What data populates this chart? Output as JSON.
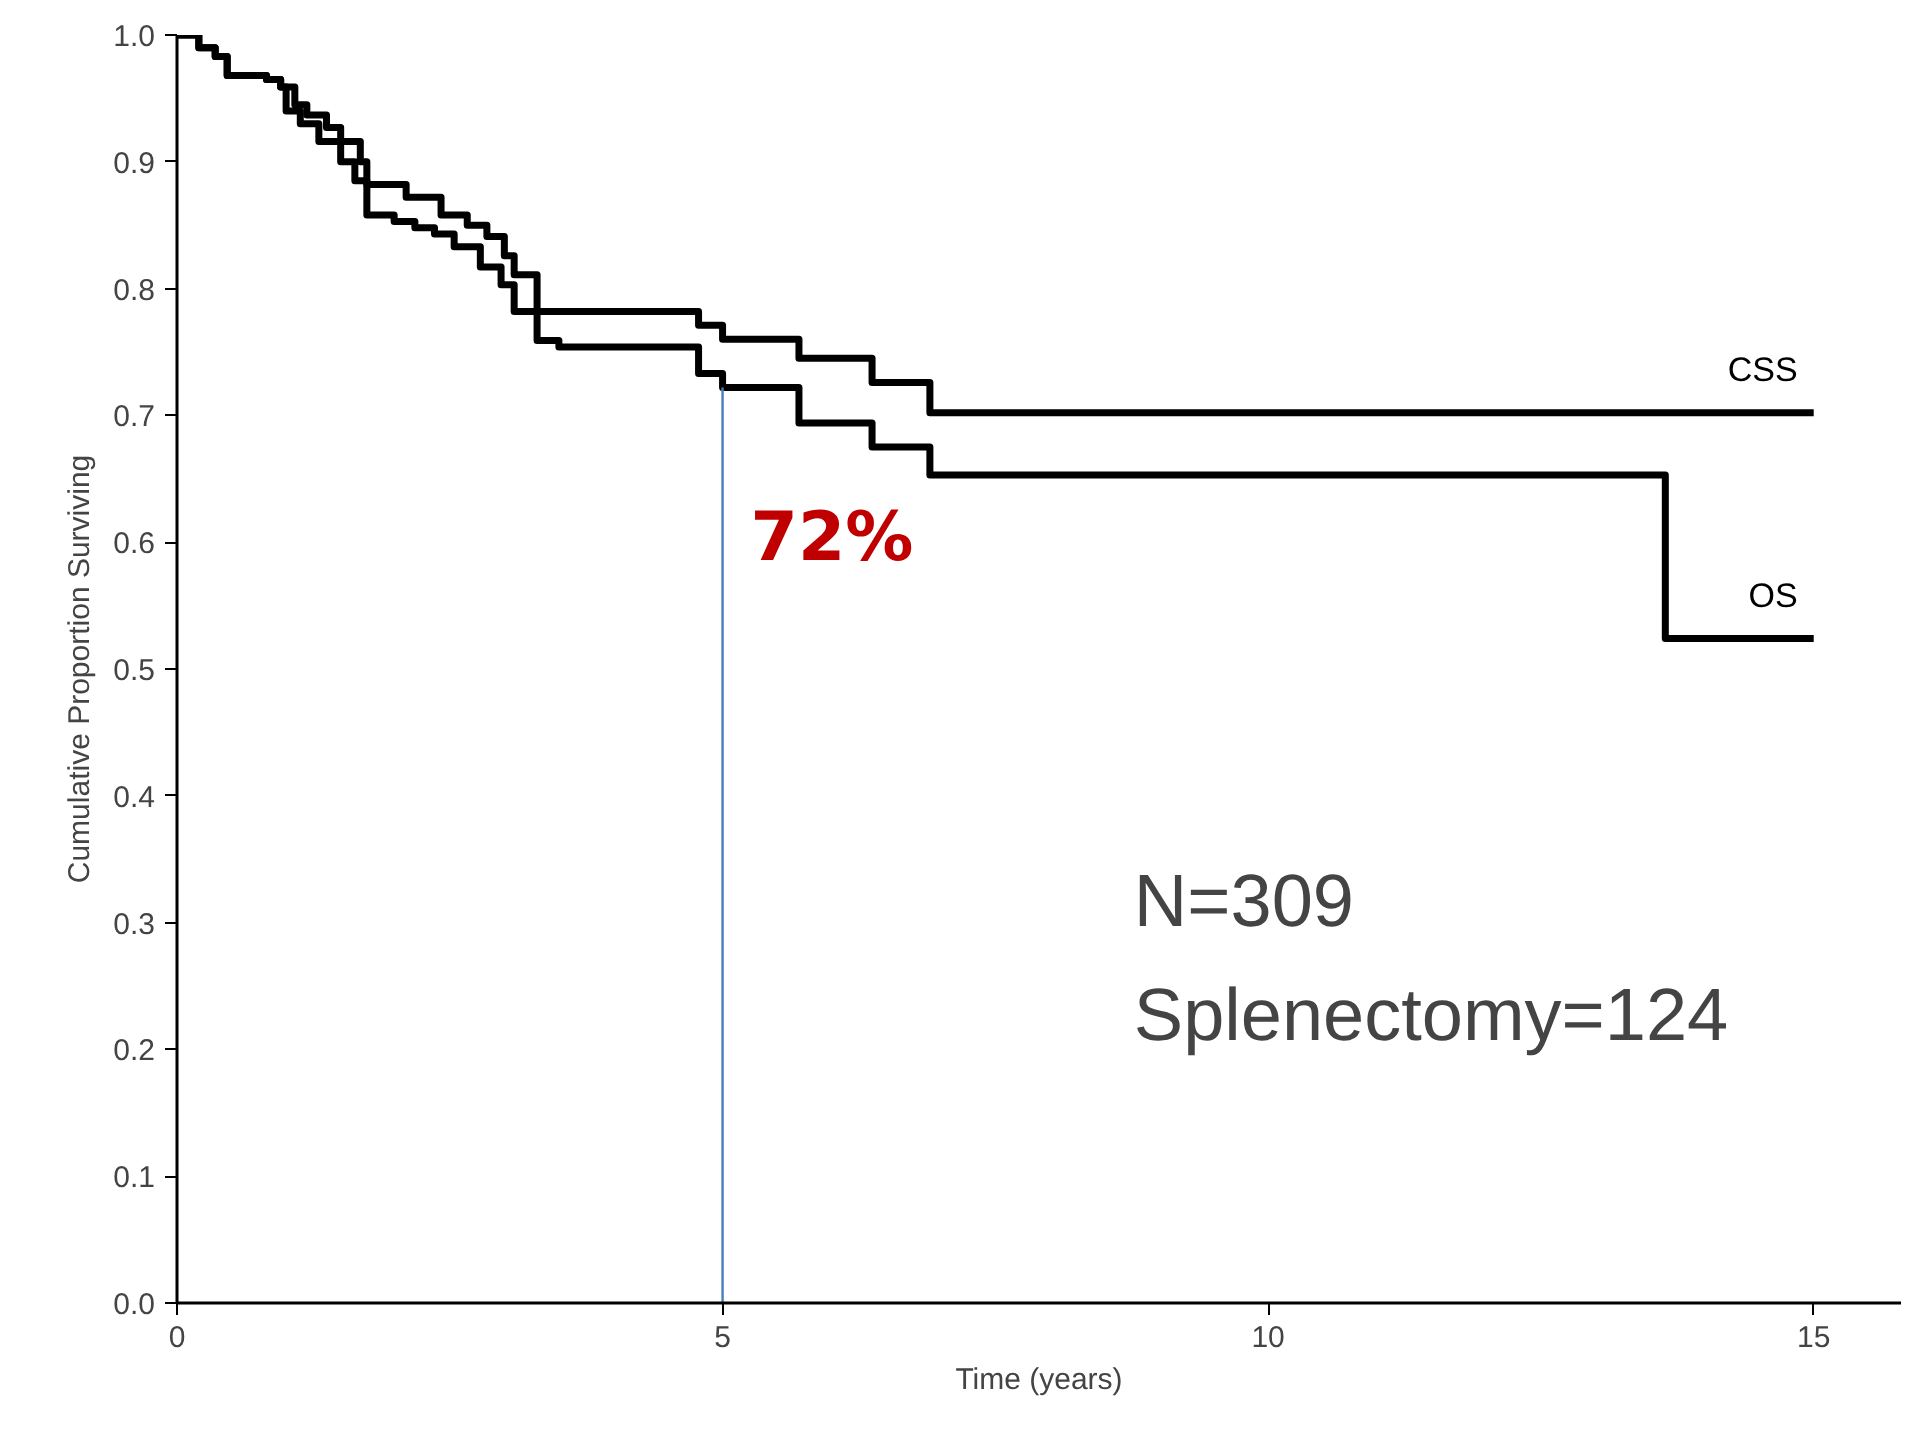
{
  "chart_data": {
    "type": "step",
    "xlabel": "Time (years)",
    "ylabel": "Cumulative Proportion Surviving",
    "xlim": [
      0,
      15.8
    ],
    "ylim": [
      0,
      1.0
    ],
    "xticks": [
      0,
      5,
      10,
      15
    ],
    "yticks": [
      {
        "value": 0,
        "label": "0.0"
      },
      0.1,
      0.2,
      0.3,
      0.4,
      0.5,
      0.6,
      0.7,
      0.8,
      0.9,
      {
        "value": 1,
        "label": "1.0"
      }
    ],
    "grid": false,
    "marker": "none",
    "line_style": "solid",
    "series": [
      {
        "name": "CSS",
        "color": "#000000",
        "x": [
          0,
          0.2,
          0.35,
          0.46,
          0.82,
          0.95,
          1.08,
          1.19,
          1.37,
          1.5,
          1.68,
          1.74,
          2.1,
          2.42,
          2.66,
          2.84,
          3.0,
          3.09,
          3.3,
          4.78,
          5.0,
          5.7,
          6.37,
          6.9,
          15
        ],
        "values": [
          1.0,
          0.99,
          0.983,
          0.968,
          0.965,
          0.959,
          0.945,
          0.937,
          0.927,
          0.916,
          0.9,
          0.882,
          0.872,
          0.858,
          0.85,
          0.841,
          0.826,
          0.811,
          0.782,
          0.771,
          0.76,
          0.745,
          0.726,
          0.702,
          0.702
        ]
      },
      {
        "name": "OS",
        "color": "#000000",
        "x": [
          0,
          0.2,
          0.35,
          0.46,
          0.82,
          0.95,
          1.0,
          1.13,
          1.3,
          1.5,
          1.63,
          1.74,
          1.99,
          2.18,
          2.36,
          2.54,
          2.78,
          2.97,
          3.09,
          3.3,
          3.5,
          4.78,
          5.0,
          5.7,
          6.37,
          6.9,
          13.64,
          15
        ],
        "values": [
          1.0,
          0.99,
          0.983,
          0.968,
          0.965,
          0.959,
          0.94,
          0.93,
          0.916,
          0.9,
          0.885,
          0.858,
          0.853,
          0.848,
          0.843,
          0.833,
          0.817,
          0.803,
          0.782,
          0.759,
          0.754,
          0.733,
          0.722,
          0.694,
          0.675,
          0.653,
          0.524,
          0.524
        ]
      }
    ],
    "ref_lines": [
      {
        "axis": "x",
        "value": 5,
        "color": "#4a7ebb"
      }
    ],
    "annotations": [
      {
        "text": "72%",
        "x": 5,
        "y": 0.722
      },
      "N=309",
      "Splenectomy=124"
    ]
  }
}
